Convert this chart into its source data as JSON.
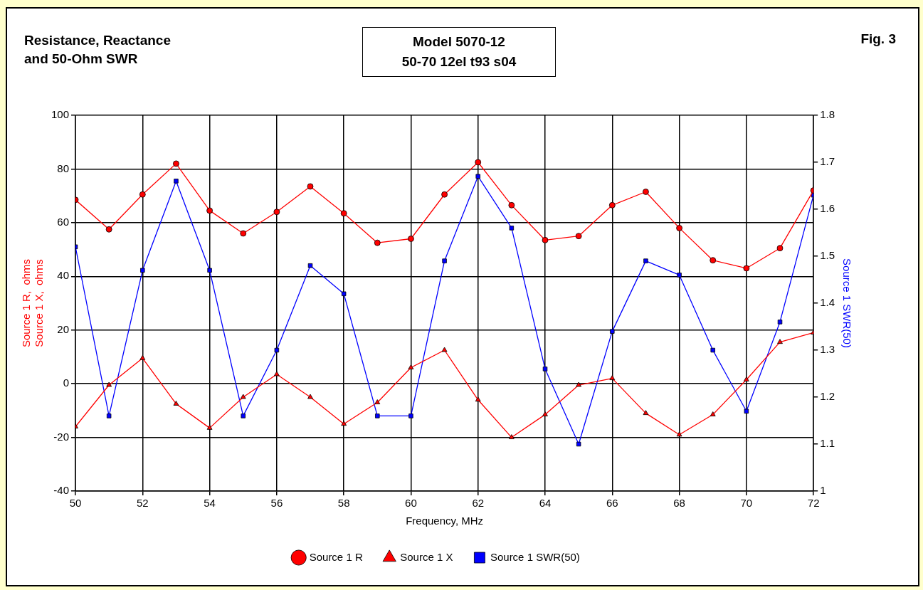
{
  "chart_data": {
    "type": "line",
    "title": "Model 5070-12\n50-70 12el t93 s04",
    "subtitle": "Resistance, Reactance\nand 50-Ohm SWR",
    "annotations": [
      "Fig. 3"
    ],
    "xlabel": "Frequency, MHz",
    "ylabel": "Source 1 R,  ohms\nSource 1 X,  ohms",
    "y2label": "Source 1 SWR(50)",
    "x": [
      50,
      51,
      52,
      53,
      54,
      55,
      56,
      57,
      58,
      59,
      60,
      61,
      62,
      63,
      64,
      65,
      66,
      67,
      68,
      69,
      70,
      71,
      72
    ],
    "xlim": [
      50,
      72
    ],
    "xticks": [
      50,
      52,
      54,
      56,
      58,
      60,
      62,
      64,
      66,
      68,
      70,
      72
    ],
    "ylim": [
      -40,
      100
    ],
    "yticks": [
      -40,
      -20,
      0,
      20,
      40,
      60,
      80,
      100
    ],
    "y2lim": [
      1,
      1.8
    ],
    "y2ticks": [
      1,
      1.1,
      1.2,
      1.3,
      1.4,
      1.5,
      1.6,
      1.7,
      1.8
    ],
    "grid": true,
    "legend": "bottom",
    "series": [
      {
        "name": "Source 1 R",
        "color": "#ff0000",
        "marker": "circle",
        "values": [
          68.5,
          57.5,
          70.5,
          82,
          64.5,
          56,
          64,
          73.5,
          63.5,
          52.5,
          54,
          70.5,
          82.5,
          66.5,
          53.5,
          55,
          66.5,
          71.5,
          58,
          46,
          43,
          50.5,
          72
        ]
      },
      {
        "name": "Source 1 X",
        "color": "#ff0000",
        "marker": "triangle",
        "values": [
          -16,
          -0.5,
          9.5,
          -7.5,
          -16.5,
          -5,
          3.5,
          -5,
          -15,
          -7,
          6,
          12.5,
          -6,
          -20,
          -11.5,
          -0.5,
          2,
          -11,
          -19,
          -11.5,
          1.5,
          15.5,
          19
        ]
      },
      {
        "name": "Source 1 SWR(50)",
        "color": "#0000ff",
        "marker": "square",
        "axis": "y2",
        "values": [
          1.52,
          1.16,
          1.47,
          1.66,
          1.47,
          1.16,
          1.3,
          1.48,
          1.42,
          1.16,
          1.16,
          1.49,
          1.67,
          1.56,
          1.26,
          1.1,
          1.34,
          1.49,
          1.46,
          1.3,
          1.17,
          1.36,
          1.63
        ]
      }
    ]
  }
}
